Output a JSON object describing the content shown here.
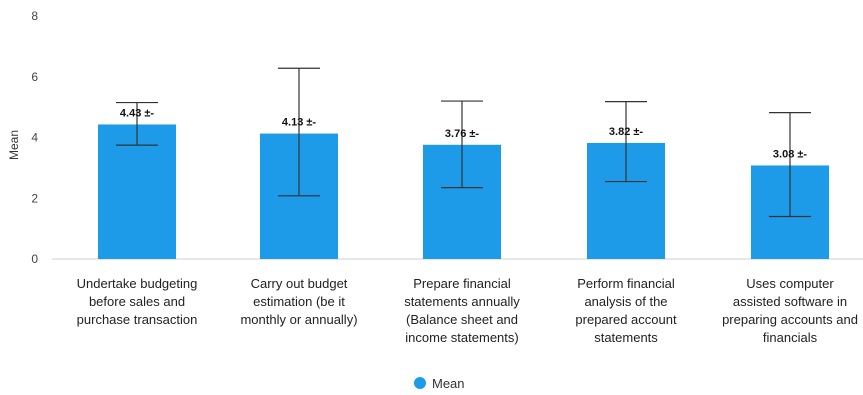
{
  "chart_data": {
    "type": "bar",
    "categories": [
      [
        "Undertake budgeting",
        "before sales and",
        "purchase transaction"
      ],
      [
        "Carry out budget",
        "estimation (be it",
        "monthly or annually)"
      ],
      [
        "Prepare financial",
        "statements annually",
        "(Balance sheet and",
        "income statements)"
      ],
      [
        "Perform financial",
        "analysis of the",
        "prepared account",
        "statements"
      ],
      [
        "Uses computer",
        "assisted software in",
        "preparing accounts and",
        "financials"
      ]
    ],
    "series": [
      {
        "name": "Mean",
        "values": [
          4.43,
          4.13,
          3.76,
          3.82,
          3.08
        ],
        "error_low": [
          3.75,
          2.08,
          2.35,
          2.55,
          1.4
        ],
        "error_high": [
          5.15,
          6.28,
          5.2,
          5.18,
          4.82
        ],
        "data_labels": [
          "4.43 ±-",
          "4.13 ±-",
          "3.76 ±-",
          "3.82 ±-",
          "3.08 ±-"
        ]
      }
    ],
    "ylabel": "Mean",
    "ylim": [
      0,
      8
    ],
    "yticks": [
      "0",
      "2",
      "4",
      "6",
      "8"
    ],
    "grid": false,
    "legend": {
      "position": "bottom-center",
      "label": "Mean"
    },
    "colors": {
      "bar": "#1E9BE8",
      "error": "#333333",
      "legend_marker": "#1E9BE8"
    }
  }
}
